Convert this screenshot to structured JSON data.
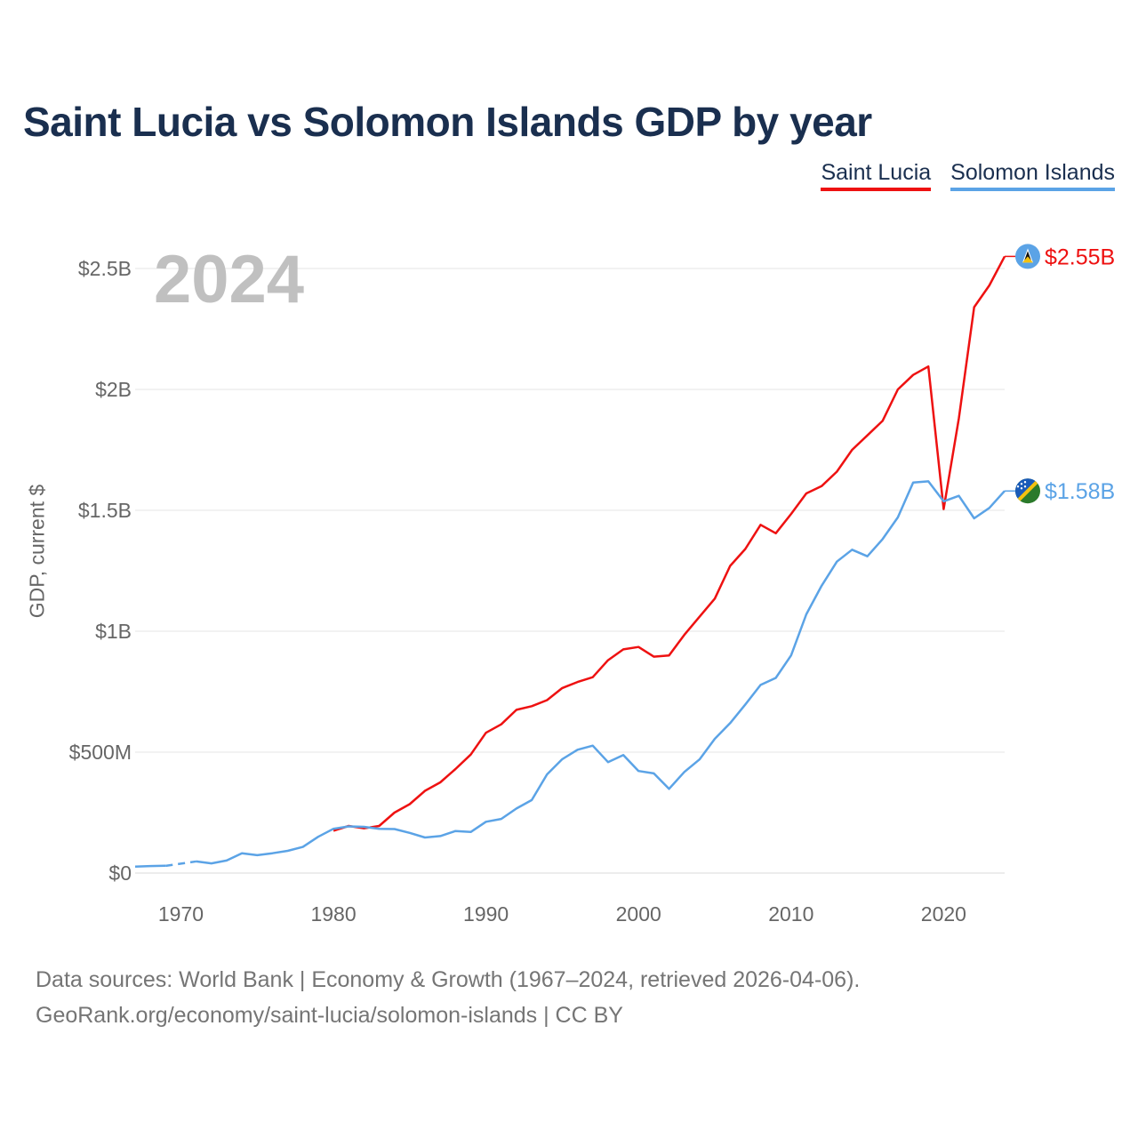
{
  "title": "Saint Lucia vs Solomon Islands GDP by year",
  "legend": [
    {
      "name": "Saint Lucia",
      "color": "#ee1111"
    },
    {
      "name": "Solomon Islands",
      "color": "#5ba3e6"
    }
  ],
  "year_display": "2024",
  "footer": {
    "line1": "Data sources: World Bank | Economy & Growth (1967–2024, retrieved 2026-04-06).",
    "line2": "GeoRank.org/economy/saint-lucia/solomon-islands | CC BY"
  },
  "chart_data": {
    "type": "line",
    "title": "Saint Lucia vs Solomon Islands GDP by year",
    "xlabel": "",
    "ylabel": "GDP, current $",
    "xlim": [
      1967,
      2024
    ],
    "ylim": [
      0,
      2700000000
    ],
    "x_ticks": [
      1970,
      1980,
      1990,
      2000,
      2010,
      2020
    ],
    "x_tick_labels": [
      "1970",
      "1980",
      "1990",
      "2000",
      "2010",
      "2020"
    ],
    "y_ticks": [
      0,
      500000000,
      1000000000,
      1500000000,
      2000000000,
      2500000000
    ],
    "y_tick_labels": [
      "$0",
      "$500M",
      "$1B",
      "$1.5B",
      "$2B",
      "$2.5B"
    ],
    "grid": true,
    "legend_position": "top-right",
    "series": [
      {
        "name": "Saint Lucia",
        "color": "#ee1111",
        "end_label": "$2.55B",
        "flag_icon": "saint-lucia-flag-icon",
        "x": [
          1980,
          1981,
          1982,
          1983,
          1984,
          1985,
          1986,
          1987,
          1988,
          1989,
          1990,
          1991,
          1992,
          1993,
          1994,
          1995,
          1996,
          1997,
          1998,
          1999,
          2000,
          2001,
          2002,
          2003,
          2004,
          2005,
          2006,
          2007,
          2008,
          2009,
          2010,
          2011,
          2012,
          2013,
          2014,
          2015,
          2016,
          2017,
          2018,
          2019,
          2020,
          2021,
          2022,
          2023,
          2024
        ],
        "values": [
          175000000,
          195000000,
          185000000,
          195000000,
          250000000,
          285000000,
          340000000,
          375000000,
          430000000,
          490000000,
          580000000,
          615000000,
          675000000,
          690000000,
          715000000,
          765000000,
          790000000,
          810000000,
          880000000,
          925000000,
          935000000,
          895000000,
          900000000,
          985000000,
          1060000000,
          1135000000,
          1270000000,
          1340000000,
          1440000000,
          1405000000,
          1485000000,
          1570000000,
          1600000000,
          1660000000,
          1750000000,
          1810000000,
          1870000000,
          2000000000,
          2060000000,
          2095000000,
          1505000000,
          1880000000,
          2340000000,
          2430000000,
          2550000000
        ]
      },
      {
        "name": "Solomon Islands",
        "color": "#5ba3e6",
        "end_label": "$1.58B",
        "flag_icon": "solomon-islands-flag-icon",
        "x": [
          1967,
          1968,
          1969,
          1970,
          1971,
          1972,
          1973,
          1974,
          1975,
          1976,
          1977,
          1978,
          1979,
          1980,
          1981,
          1982,
          1983,
          1984,
          1985,
          1986,
          1987,
          1988,
          1989,
          1990,
          1991,
          1992,
          1993,
          1994,
          1995,
          1996,
          1997,
          1998,
          1999,
          2000,
          2001,
          2002,
          2003,
          2004,
          2005,
          2006,
          2007,
          2008,
          2009,
          2010,
          2011,
          2012,
          2013,
          2014,
          2015,
          2016,
          2017,
          2018,
          2019,
          2020,
          2021,
          2022,
          2023,
          2024
        ],
        "values": [
          27000000,
          29000000,
          30000000,
          null,
          48000000,
          40000000,
          52000000,
          82000000,
          74000000,
          82000000,
          92000000,
          108000000,
          150000000,
          183000000,
          193000000,
          191000000,
          183000000,
          182000000,
          166000000,
          147000000,
          153000000,
          174000000,
          170000000,
          212000000,
          224000000,
          267000000,
          302000000,
          408000000,
          471000000,
          510000000,
          527000000,
          459000000,
          488000000,
          422000000,
          412000000,
          348000000,
          418000000,
          470000000,
          555000000,
          620000000,
          697000000,
          778000000,
          807000000,
          900000000,
          1070000000,
          1188000000,
          1288000000,
          1337000000,
          1310000000,
          1381000000,
          1471000000,
          1615000000,
          1620000000,
          1537000000,
          1560000000,
          1467000000,
          1510000000,
          1580000000
        ]
      }
    ]
  }
}
